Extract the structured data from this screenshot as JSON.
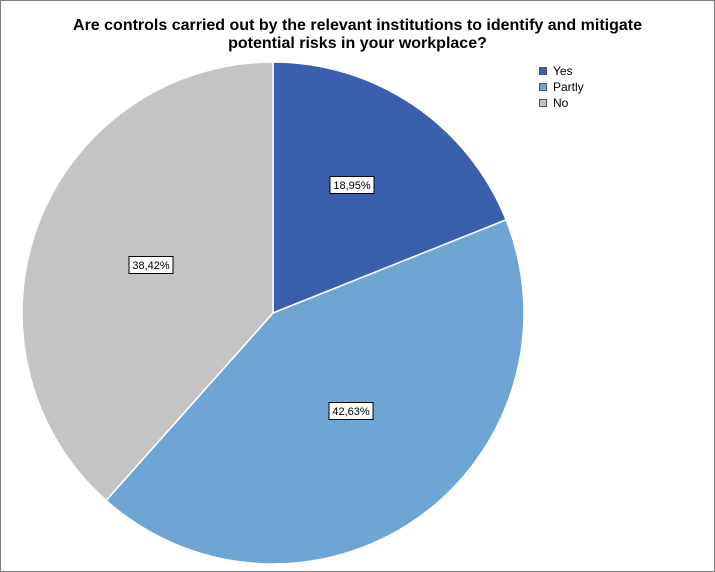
{
  "chart_data": {
    "type": "pie",
    "title_lines": [
      "Are controls carried out by the relevant institutions to identify and mitigate",
      "potential risks in your workplace?"
    ],
    "slices": [
      {
        "name": "Yes",
        "value": 18.95,
        "label": "18,95%",
        "color": "#3a5fad"
      },
      {
        "name": "Partly",
        "value": 42.63,
        "label": "42,63%",
        "color": "#6ea5d4"
      },
      {
        "name": "No",
        "value": 38.42,
        "label": "38,42%",
        "color": "#c4c4c4"
      }
    ],
    "legend": {
      "placement": "top-right",
      "entries": [
        "Yes",
        "Partly",
        "No"
      ]
    }
  }
}
